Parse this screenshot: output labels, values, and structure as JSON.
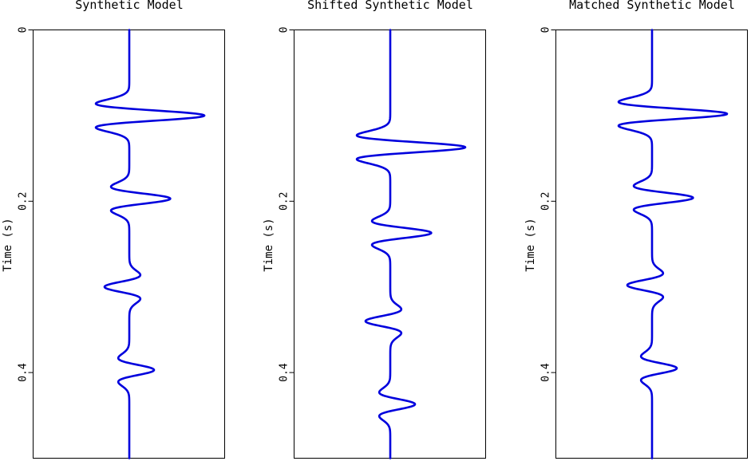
{
  "chart_data": [
    {
      "type": "line",
      "title": "Synthetic Model",
      "ylabel": "Time (s)",
      "yticks": [
        0,
        0.2,
        0.4
      ],
      "ytick_labels": [
        "0",
        "0.2",
        "0.4"
      ],
      "ylim": [
        0,
        0.5
      ],
      "y_inverted": true,
      "series": [
        {
          "color": "#0000dd",
          "wavelets": [
            {
              "t": 0.1,
              "amp": 0.97
            },
            {
              "t": 0.197,
              "amp": 0.53
            },
            {
              "t": 0.3,
              "amp": -0.32
            },
            {
              "t": 0.397,
              "amp": 0.32
            }
          ]
        }
      ]
    },
    {
      "type": "line",
      "title": "Shifted Synthetic Model",
      "ylabel": "Time (s)",
      "yticks": [
        0,
        0.2,
        0.4
      ],
      "ytick_labels": [
        "0",
        "0.2",
        "0.4"
      ],
      "ylim": [
        0,
        0.5
      ],
      "y_inverted": true,
      "series": [
        {
          "color": "#0000dd",
          "wavelets": [
            {
              "t": 0.137,
              "amp": 0.97
            },
            {
              "t": 0.237,
              "amp": 0.53
            },
            {
              "t": 0.34,
              "amp": -0.32
            },
            {
              "t": 0.437,
              "amp": 0.32
            }
          ]
        }
      ]
    },
    {
      "type": "line",
      "title": "Matched Synthetic Model",
      "ylabel": "Time (s)",
      "yticks": [
        0,
        0.2,
        0.4
      ],
      "ytick_labels": [
        "0",
        "0.2",
        "0.4"
      ],
      "ylim": [
        0,
        0.5
      ],
      "y_inverted": true,
      "series": [
        {
          "color": "#0000dd",
          "wavelets": [
            {
              "t": 0.098,
              "amp": 0.97
            },
            {
              "t": 0.196,
              "amp": 0.53
            },
            {
              "t": 0.298,
              "amp": -0.32
            },
            {
              "t": 0.395,
              "amp": 0.32
            }
          ]
        }
      ]
    }
  ]
}
